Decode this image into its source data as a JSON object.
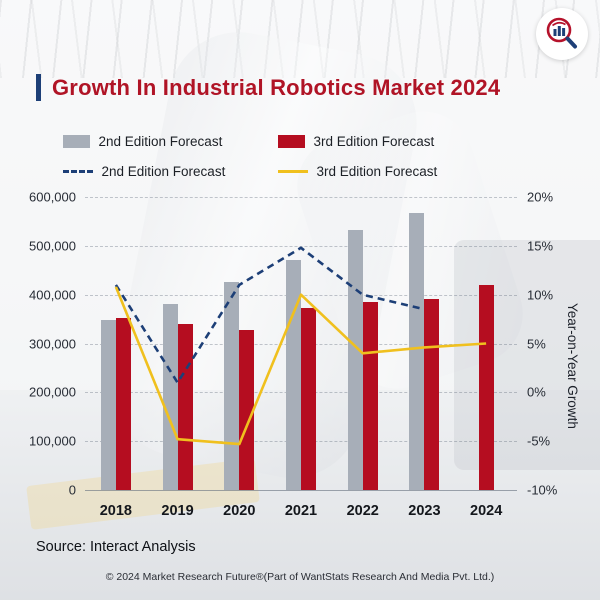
{
  "header": {
    "title": "Growth In Industrial Robotics Market 2024",
    "title_color": "#b01426",
    "accent_color": "#1d3f77"
  },
  "logo": {
    "alt": "Market Research Future logo",
    "ring_color": "#b5122b",
    "bar_color": "#1d3f77"
  },
  "legend": [
    {
      "label": "2nd Edition Forecast",
      "type": "bar",
      "color": "#a7aeb8"
    },
    {
      "label": "3rd Edition Forecast",
      "type": "bar",
      "color": "#b50d20"
    },
    {
      "label": "2nd Edition Forecast",
      "type": "dashed-line",
      "color": "#1d3f77"
    },
    {
      "label": "3rd Edition Forecast",
      "type": "line",
      "color": "#f0c01e"
    }
  ],
  "chart_data": {
    "type": "bar+line combo",
    "categories": [
      "2018",
      "2019",
      "2020",
      "2021",
      "2022",
      "2023",
      "2024"
    ],
    "series": [
      {
        "name": "2nd Edition Forecast (units)",
        "type": "bar",
        "color": "#a7aeb8",
        "values": [
          348000,
          380000,
          425000,
          470000,
          533000,
          568000,
          null
        ]
      },
      {
        "name": "3rd Edition Forecast (units)",
        "type": "bar",
        "color": "#b50d20",
        "values": [
          352000,
          340000,
          328000,
          372000,
          385000,
          392000,
          420000
        ]
      },
      {
        "name": "2nd Edition Forecast (YoY %)",
        "type": "line-dashed",
        "color": "#1d3f77",
        "axis": "right",
        "values": [
          11,
          1,
          11,
          14.8,
          10,
          8.5,
          null
        ]
      },
      {
        "name": "3rd Edition Forecast (YoY %)",
        "type": "line",
        "color": "#f0c01e",
        "axis": "right",
        "values": [
          10.8,
          -4.8,
          -5.3,
          10,
          4,
          4.6,
          5
        ]
      }
    ],
    "left_axis": {
      "min": 0,
      "max": 600000,
      "step": 100000,
      "ticks": [
        "600,000",
        "500,000",
        "400,000",
        "300,000",
        "200,000",
        "100,000",
        "0"
      ]
    },
    "right_axis": {
      "min": -10,
      "max": 20,
      "step": 5,
      "ticks": [
        "20%",
        "15%",
        "10%",
        "5%",
        "0%",
        "-5%",
        "-10%"
      ],
      "label": "Year-on-Year Growth"
    },
    "grid": "horizontal dashed",
    "legend_position": "top"
  },
  "footer": {
    "source": "Source: Interact Analysis",
    "copyright": "© 2024 Market Research Future®(Part of WantStats Research And Media Pvt. Ltd.)"
  }
}
